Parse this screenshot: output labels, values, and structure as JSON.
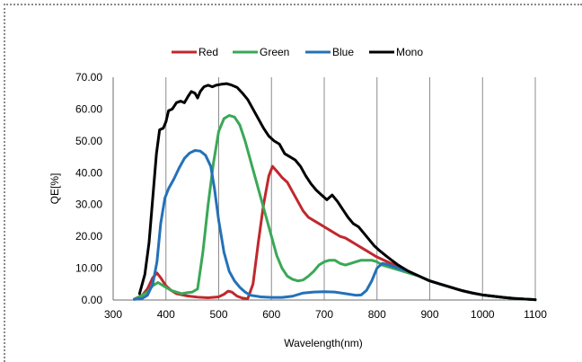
{
  "chart_data": {
    "type": "line",
    "title": "",
    "xlabel": "Wavelength(nm)",
    "ylabel": "QE[%]",
    "xlim": [
      300,
      1100
    ],
    "ylim": [
      0,
      70
    ],
    "xticks": [
      "300",
      "400",
      "500",
      "600",
      "700",
      "800",
      "900",
      "1000",
      "1100"
    ],
    "yticks": [
      "0.00",
      "10.00",
      "20.00",
      "30.00",
      "40.00",
      "50.00",
      "60.00",
      "70.00"
    ],
    "grid": "vertical",
    "legend": "top",
    "series": [
      {
        "name": "Red",
        "color": "#c0282d",
        "points": [
          [
            340,
            0.3
          ],
          [
            355,
            1.5
          ],
          [
            365,
            3.5
          ],
          [
            375,
            7
          ],
          [
            383,
            8.5
          ],
          [
            390,
            7
          ],
          [
            400,
            4.5
          ],
          [
            410,
            3
          ],
          [
            420,
            2
          ],
          [
            440,
            1.3
          ],
          [
            460,
            0.9
          ],
          [
            480,
            0.7
          ],
          [
            500,
            1.0
          ],
          [
            510,
            1.8
          ],
          [
            518,
            2.8
          ],
          [
            525,
            2.5
          ],
          [
            535,
            1.2
          ],
          [
            545,
            0.6
          ],
          [
            555,
            0.4
          ],
          [
            565,
            5
          ],
          [
            575,
            18
          ],
          [
            585,
            30
          ],
          [
            595,
            39
          ],
          [
            602,
            42
          ],
          [
            610,
            40.5
          ],
          [
            620,
            38.5
          ],
          [
            630,
            37
          ],
          [
            640,
            34
          ],
          [
            650,
            31
          ],
          [
            660,
            28
          ],
          [
            670,
            26
          ],
          [
            680,
            25
          ],
          [
            690,
            24
          ],
          [
            700,
            23
          ],
          [
            710,
            22
          ],
          [
            720,
            21
          ],
          [
            730,
            20
          ],
          [
            740,
            19.5
          ],
          [
            750,
            18.5
          ],
          [
            760,
            17.5
          ],
          [
            770,
            16.5
          ],
          [
            780,
            15.5
          ],
          [
            790,
            14.5
          ],
          [
            800,
            13.5
          ],
          [
            820,
            12
          ],
          [
            840,
            10.5
          ],
          [
            860,
            9
          ],
          [
            880,
            7.5
          ],
          [
            900,
            6
          ],
          [
            920,
            5
          ],
          [
            940,
            4
          ],
          [
            960,
            3
          ],
          [
            980,
            2.3
          ],
          [
            1000,
            1.6
          ],
          [
            1020,
            1.2
          ],
          [
            1040,
            0.8
          ],
          [
            1060,
            0.5
          ],
          [
            1080,
            0.3
          ],
          [
            1100,
            0.1
          ]
        ]
      },
      {
        "name": "Green",
        "color": "#3aa856",
        "points": [
          [
            340,
            0.2
          ],
          [
            355,
            1.5
          ],
          [
            365,
            2.5
          ],
          [
            375,
            4.5
          ],
          [
            385,
            5.5
          ],
          [
            395,
            4.5
          ],
          [
            410,
            3
          ],
          [
            420,
            2.5
          ],
          [
            430,
            2
          ],
          [
            440,
            2.3
          ],
          [
            450,
            2.5
          ],
          [
            460,
            3.5
          ],
          [
            470,
            15
          ],
          [
            480,
            30
          ],
          [
            490,
            43
          ],
          [
            500,
            53
          ],
          [
            510,
            57
          ],
          [
            520,
            58
          ],
          [
            530,
            57.5
          ],
          [
            540,
            55
          ],
          [
            550,
            50
          ],
          [
            560,
            44
          ],
          [
            570,
            38
          ],
          [
            580,
            32
          ],
          [
            590,
            26
          ],
          [
            600,
            20
          ],
          [
            610,
            14
          ],
          [
            620,
            10
          ],
          [
            630,
            7.5
          ],
          [
            640,
            6.5
          ],
          [
            650,
            6
          ],
          [
            660,
            6.3
          ],
          [
            670,
            7.5
          ],
          [
            680,
            9
          ],
          [
            690,
            11
          ],
          [
            700,
            12
          ],
          [
            710,
            12.5
          ],
          [
            720,
            12.5
          ],
          [
            730,
            11.5
          ],
          [
            740,
            11
          ],
          [
            750,
            11.5
          ],
          [
            760,
            12
          ],
          [
            770,
            12.5
          ],
          [
            780,
            12.5
          ],
          [
            790,
            12.5
          ],
          [
            800,
            12
          ],
          [
            810,
            11
          ],
          [
            820,
            10.5
          ],
          [
            840,
            9.5
          ],
          [
            860,
            8.5
          ],
          [
            880,
            7.5
          ],
          [
            900,
            6
          ],
          [
            920,
            5
          ],
          [
            940,
            4
          ],
          [
            960,
            3
          ],
          [
            980,
            2.2
          ],
          [
            1000,
            1.6
          ],
          [
            1020,
            1.2
          ],
          [
            1040,
            0.8
          ],
          [
            1060,
            0.5
          ],
          [
            1080,
            0.3
          ],
          [
            1100,
            0.1
          ]
        ]
      },
      {
        "name": "Blue",
        "color": "#2471b8",
        "points": [
          [
            340,
            0.2
          ],
          [
            355,
            0.5
          ],
          [
            365,
            1.5
          ],
          [
            375,
            5
          ],
          [
            383,
            12
          ],
          [
            390,
            24
          ],
          [
            398,
            32
          ],
          [
            405,
            35
          ],
          [
            415,
            38
          ],
          [
            425,
            41.5
          ],
          [
            435,
            44.5
          ],
          [
            445,
            46.2
          ],
          [
            455,
            47
          ],
          [
            465,
            46.8
          ],
          [
            475,
            45.5
          ],
          [
            485,
            42
          ],
          [
            492,
            35
          ],
          [
            500,
            25
          ],
          [
            510,
            15
          ],
          [
            520,
            9
          ],
          [
            530,
            6
          ],
          [
            540,
            4
          ],
          [
            550,
            2.5
          ],
          [
            560,
            1.5
          ],
          [
            580,
            1
          ],
          [
            600,
            0.8
          ],
          [
            620,
            0.8
          ],
          [
            640,
            1.2
          ],
          [
            660,
            2.2
          ],
          [
            680,
            2.5
          ],
          [
            700,
            2.6
          ],
          [
            720,
            2.5
          ],
          [
            740,
            2
          ],
          [
            760,
            1.5
          ],
          [
            770,
            1.6
          ],
          [
            780,
            3
          ],
          [
            790,
            6
          ],
          [
            800,
            10
          ],
          [
            810,
            11.5
          ],
          [
            820,
            11.2
          ],
          [
            840,
            10
          ],
          [
            860,
            9
          ],
          [
            880,
            7.5
          ],
          [
            900,
            6
          ],
          [
            920,
            5
          ],
          [
            940,
            4
          ],
          [
            960,
            3
          ],
          [
            980,
            2.2
          ],
          [
            1000,
            1.6
          ],
          [
            1020,
            1.2
          ],
          [
            1040,
            0.8
          ],
          [
            1060,
            0.5
          ],
          [
            1080,
            0.3
          ],
          [
            1100,
            0.1
          ]
        ]
      },
      {
        "name": "Mono",
        "color": "#000000",
        "points": [
          [
            350,
            2
          ],
          [
            360,
            8
          ],
          [
            368,
            18
          ],
          [
            375,
            32
          ],
          [
            382,
            46
          ],
          [
            388,
            53.5
          ],
          [
            395,
            54
          ],
          [
            400,
            56
          ],
          [
            405,
            59.5
          ],
          [
            412,
            60
          ],
          [
            420,
            62
          ],
          [
            428,
            62.5
          ],
          [
            435,
            62
          ],
          [
            442,
            64
          ],
          [
            448,
            65.5
          ],
          [
            455,
            65
          ],
          [
            460,
            63.5
          ],
          [
            465,
            65.5
          ],
          [
            472,
            67
          ],
          [
            480,
            67.5
          ],
          [
            488,
            67
          ],
          [
            495,
            67.5
          ],
          [
            505,
            67.8
          ],
          [
            515,
            68
          ],
          [
            525,
            67.5
          ],
          [
            535,
            66.8
          ],
          [
            545,
            65
          ],
          [
            555,
            63
          ],
          [
            565,
            60
          ],
          [
            575,
            57
          ],
          [
            585,
            54
          ],
          [
            595,
            51.5
          ],
          [
            605,
            50
          ],
          [
            615,
            49
          ],
          [
            625,
            46
          ],
          [
            635,
            45
          ],
          [
            645,
            44
          ],
          [
            655,
            42
          ],
          [
            665,
            39
          ],
          [
            675,
            36.5
          ],
          [
            685,
            34.5
          ],
          [
            695,
            33
          ],
          [
            705,
            31.5
          ],
          [
            715,
            33
          ],
          [
            725,
            31
          ],
          [
            735,
            28.5
          ],
          [
            745,
            26
          ],
          [
            755,
            24
          ],
          [
            765,
            23
          ],
          [
            775,
            21
          ],
          [
            785,
            19
          ],
          [
            795,
            17
          ],
          [
            805,
            15.5
          ],
          [
            820,
            13.5
          ],
          [
            840,
            11
          ],
          [
            860,
            9
          ],
          [
            880,
            7.5
          ],
          [
            900,
            6
          ],
          [
            920,
            5
          ],
          [
            940,
            4
          ],
          [
            960,
            3
          ],
          [
            980,
            2.2
          ],
          [
            1000,
            1.6
          ],
          [
            1020,
            1.2
          ],
          [
            1040,
            0.8
          ],
          [
            1060,
            0.5
          ],
          [
            1080,
            0.3
          ],
          [
            1100,
            0.1
          ]
        ]
      }
    ]
  }
}
